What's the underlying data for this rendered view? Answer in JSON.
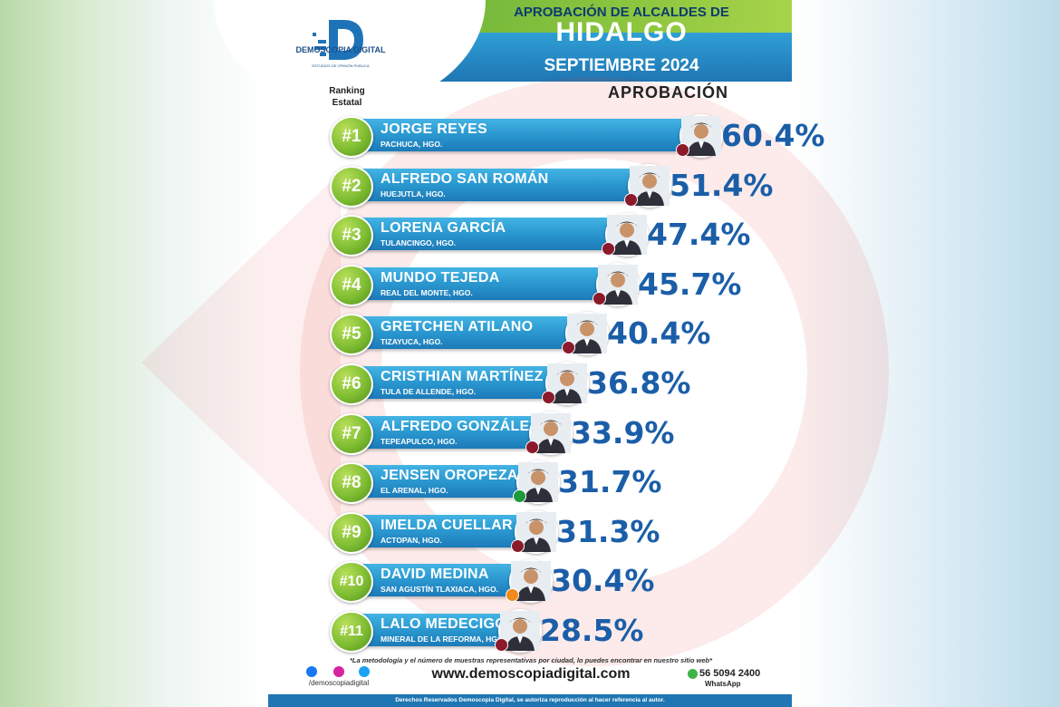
{
  "header": {
    "title_line1": "APROBACIÓN DE ALCALDES DE",
    "title_line2": "HIDALGO",
    "title_line3": "SEPTIEMBRE 2024",
    "logo_name": "DEMOSCOPIA DIGITAL",
    "logo_tagline": "ESTUDIOS DE OPINIÓN PÚBLICA"
  },
  "labels": {
    "ranking": "Ranking Estatal",
    "approval": "APROBACIÓN"
  },
  "colors": {
    "bar": "#2a97cf",
    "badge": "#7fbd32",
    "percent_text": "#1b5ea8",
    "header_green": "#8cc63e",
    "header_blue": "#2a8ec8"
  },
  "chart_data": {
    "type": "bar",
    "orientation": "horizontal",
    "title": "APROBACIÓN DE ALCALDES DE HIDALGO",
    "subtitle": "SEPTIEMBRE 2024",
    "value_label": "APROBACIÓN",
    "unit": "%",
    "xlim": [
      0,
      100
    ],
    "grid": false,
    "items": [
      {
        "rank": "#1",
        "name": "JORGE REYES",
        "city": "PACHUCA, HGO.",
        "value": 60.4,
        "label": "60.4%",
        "party_color": "#8b1a2b"
      },
      {
        "rank": "#2",
        "name": "ALFREDO SAN ROMÁN",
        "city": "HUEJUTLA, HGO.",
        "value": 51.4,
        "label": "51.4%",
        "party_color": "#8b1a2b"
      },
      {
        "rank": "#3",
        "name": "LORENA GARCÍA",
        "city": "TULANCINGO, HGO.",
        "value": 47.4,
        "label": "47.4%",
        "party_color": "#8b1a2b"
      },
      {
        "rank": "#4",
        "name": "MUNDO TEJEDA",
        "city": "REAL DEL MONTE, HGO.",
        "value": 45.7,
        "label": "45.7%",
        "party_color": "#8b1a2b"
      },
      {
        "rank": "#5",
        "name": "GRETCHEN ATILANO",
        "city": "TIZAYUCA, HGO.",
        "value": 40.4,
        "label": "40.4%",
        "party_color": "#8b1a2b"
      },
      {
        "rank": "#6",
        "name": "CRISTHIAN MARTÍNEZ",
        "city": "TULA DE ALLENDE, HGO.",
        "value": 36.8,
        "label": "36.8%",
        "party_color": "#8b1a2b"
      },
      {
        "rank": "#7",
        "name": "ALFREDO GONZÁLEZ",
        "city": "TEPEAPULCO, HGO.",
        "value": 33.9,
        "label": "33.9%",
        "party_color": "#8b1a2b"
      },
      {
        "rank": "#8",
        "name": "JENSEN OROPEZA",
        "city": "EL ARENAL, HGO.",
        "value": 31.7,
        "label": "31.7%",
        "party_color": "#1f9a3a"
      },
      {
        "rank": "#9",
        "name": "IMELDA CUELLAR",
        "city": "ACTOPAN, HGO.",
        "value": 31.3,
        "label": "31.3%",
        "party_color": "#8b1a2b"
      },
      {
        "rank": "#10",
        "name": "DAVID MEDINA",
        "city": "SAN AGUSTÍN TLAXIACA, HGO.",
        "value": 30.4,
        "label": "30.4%",
        "party_color": "#f08a1c"
      },
      {
        "rank": "#11",
        "name": "LALO MEDECIGO",
        "city": "MINERAL DE LA REFORMA, HGO.",
        "value": 28.5,
        "label": "28.5%",
        "party_color": "#8b1a2b"
      }
    ]
  },
  "footer": {
    "note": "*La metodología y el número de muestras representativas por ciudad, lo puedes encontrar en nuestro sitio web*",
    "website": "www.demoscopiadigital.com",
    "handle": "/demoscopiadigital",
    "phone": "56 5094 2400",
    "whatsapp": "WhatsApp",
    "rights": "Derechos Reservados Demoscopia Digital, se autoriza reproducción al hacer referencia al autor."
  }
}
